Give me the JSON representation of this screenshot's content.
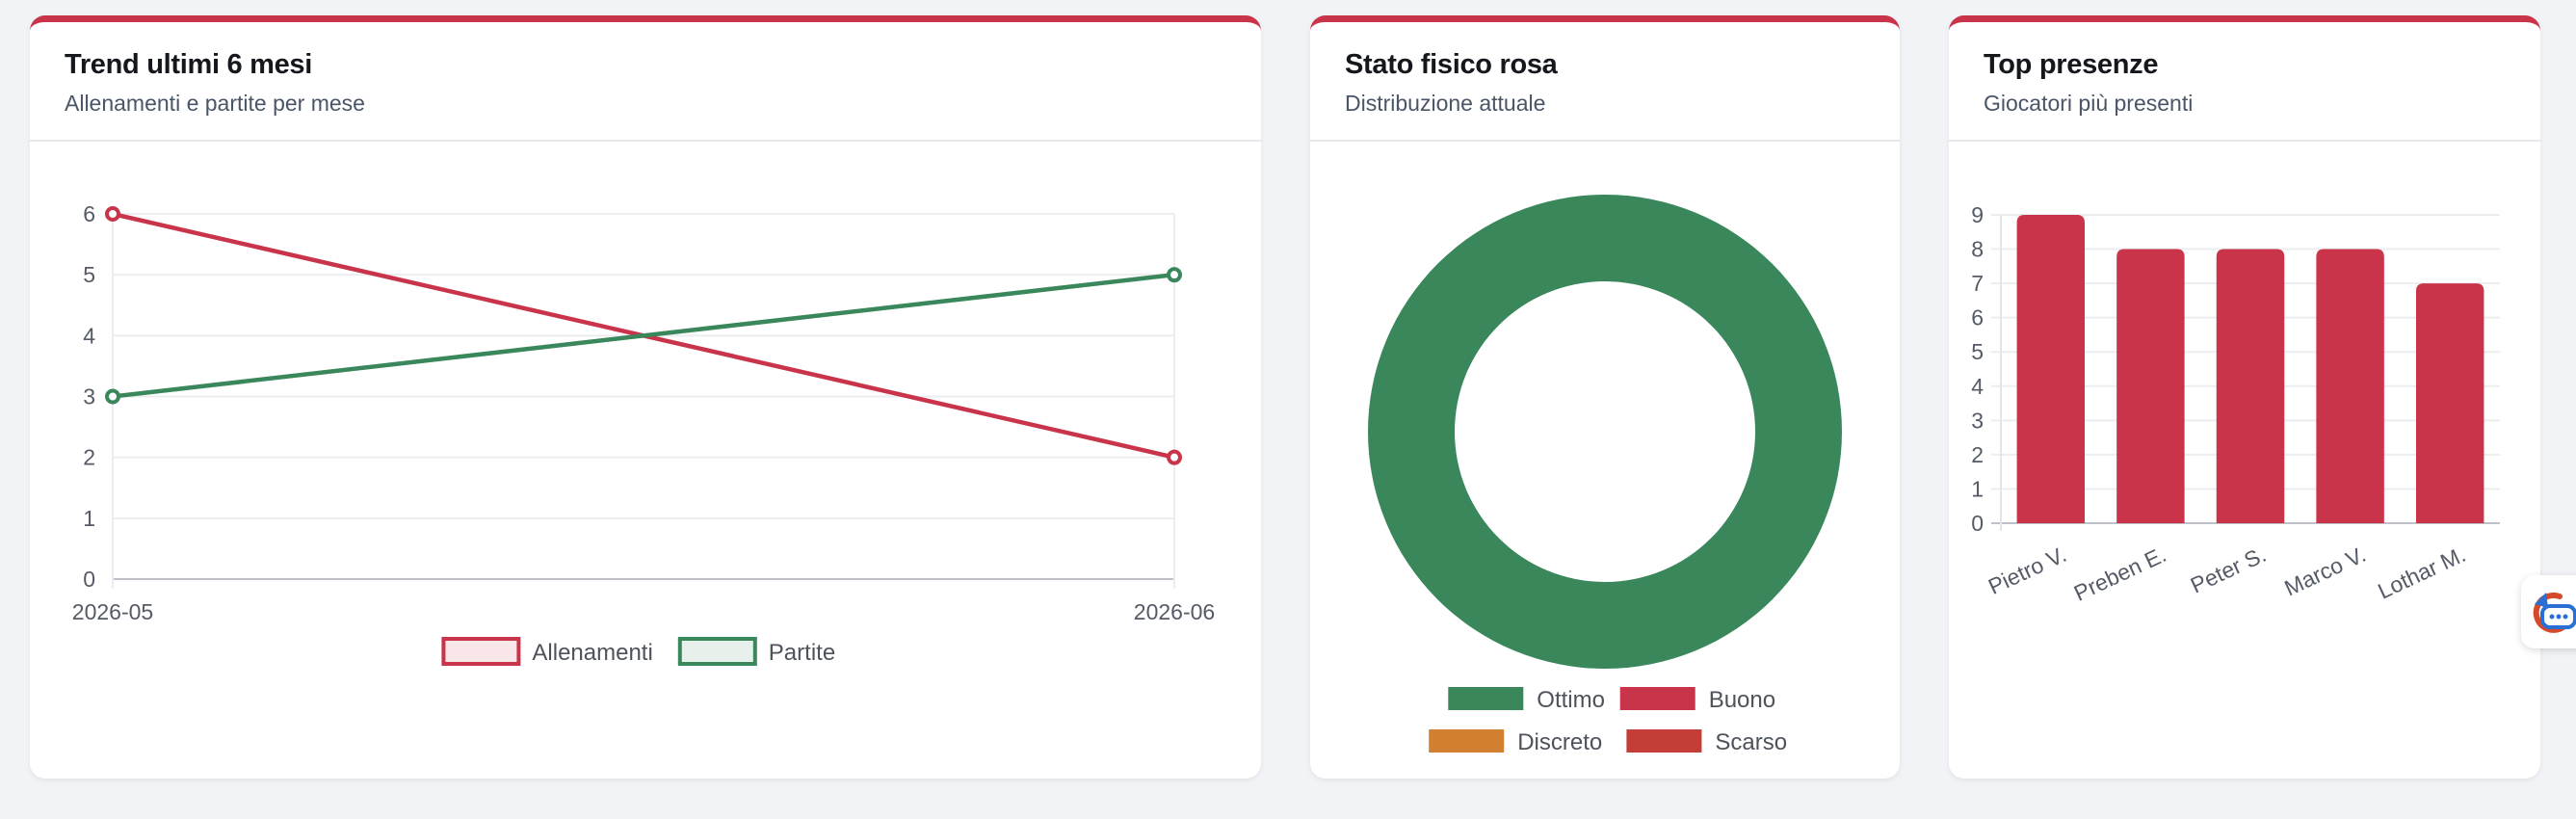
{
  "cards": {
    "trend": {
      "title": "Trend ultimi 6 mesi",
      "subtitle": "Allenamenti e partite per mese"
    },
    "stato": {
      "title": "Stato fisico rosa",
      "subtitle": "Distribuzione attuale"
    },
    "top": {
      "title": "Top presenze",
      "subtitle": "Giocatori più presenti"
    }
  },
  "colors": {
    "accent": "#c9344a",
    "green": "#3a875c",
    "orange": "#d27f32",
    "darkred": "#c43d37"
  },
  "chart_data": [
    {
      "type": "line",
      "x": [
        "2026-05",
        "2026-06"
      ],
      "ylim": [
        0,
        6
      ],
      "yticks": [
        "0",
        "1",
        "2",
        "3",
        "4",
        "5",
        "6"
      ],
      "grid": true,
      "legend_position": "bottom",
      "series": [
        {
          "name": "Allenamenti",
          "values": [
            6,
            2
          ],
          "color": "#c9344a"
        },
        {
          "name": "Partite",
          "values": [
            3,
            5
          ],
          "color": "#3a875c"
        }
      ]
    },
    {
      "type": "pie",
      "labels": [
        "Ottimo",
        "Buono",
        "Discreto",
        "Scarso"
      ],
      "values": [
        100,
        0,
        0,
        0
      ],
      "colors": [
        "#3a875c",
        "#c9344a",
        "#d27f32",
        "#c43d37"
      ],
      "legend_position": "bottom"
    },
    {
      "type": "bar",
      "categories": [
        "Pietro V.",
        "Preben E.",
        "Peter S.",
        "Marco V.",
        "Lothar M."
      ],
      "values": [
        9,
        8,
        8,
        8,
        7
      ],
      "ylim": [
        0,
        9
      ],
      "yticks": [
        "0",
        "1",
        "2",
        "3",
        "4",
        "5",
        "6",
        "7",
        "8",
        "9"
      ],
      "grid": true,
      "color": "#c9344a"
    }
  ]
}
